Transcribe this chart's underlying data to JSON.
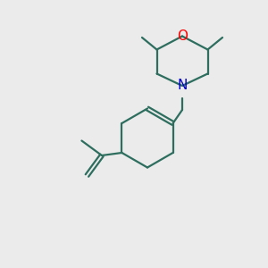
{
  "bg_color": "#ebebeb",
  "bond_color": "#2d6e5e",
  "O_color": "#ff0000",
  "N_color": "#0000cc",
  "linewidth": 1.6,
  "fontsize": 11,
  "figsize": [
    3.0,
    3.0
  ],
  "dpi": 100
}
